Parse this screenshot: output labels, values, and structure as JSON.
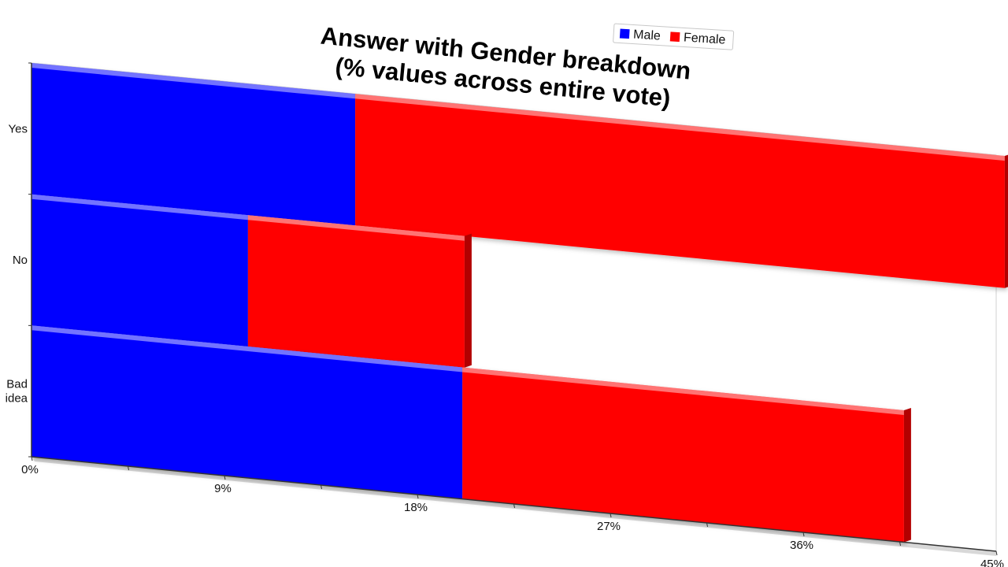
{
  "chart_data": {
    "type": "bar",
    "orientation": "horizontal",
    "stacked": true,
    "title": [
      "Answer with Gender breakdown",
      "(% values across entire vote)"
    ],
    "categories": [
      "Yes",
      "No",
      "Bad idea"
    ],
    "category_lines": [
      [
        "Yes"
      ],
      [
        "No"
      ],
      [
        "Bad",
        "idea"
      ]
    ],
    "series": [
      {
        "name": "Male",
        "color": "#0000ff",
        "values": [
          15.1,
          10.1,
          20.1
        ]
      },
      {
        "name": "Female",
        "color": "#ff0000",
        "values": [
          30.3,
          10.1,
          20.6
        ]
      }
    ],
    "xlim": [
      0,
      45
    ],
    "xticks": [
      "0%",
      "9%",
      "18%",
      "27%",
      "36%",
      "45%"
    ],
    "legend_position": "top-right",
    "grid": false,
    "style": "3d-perspective"
  }
}
